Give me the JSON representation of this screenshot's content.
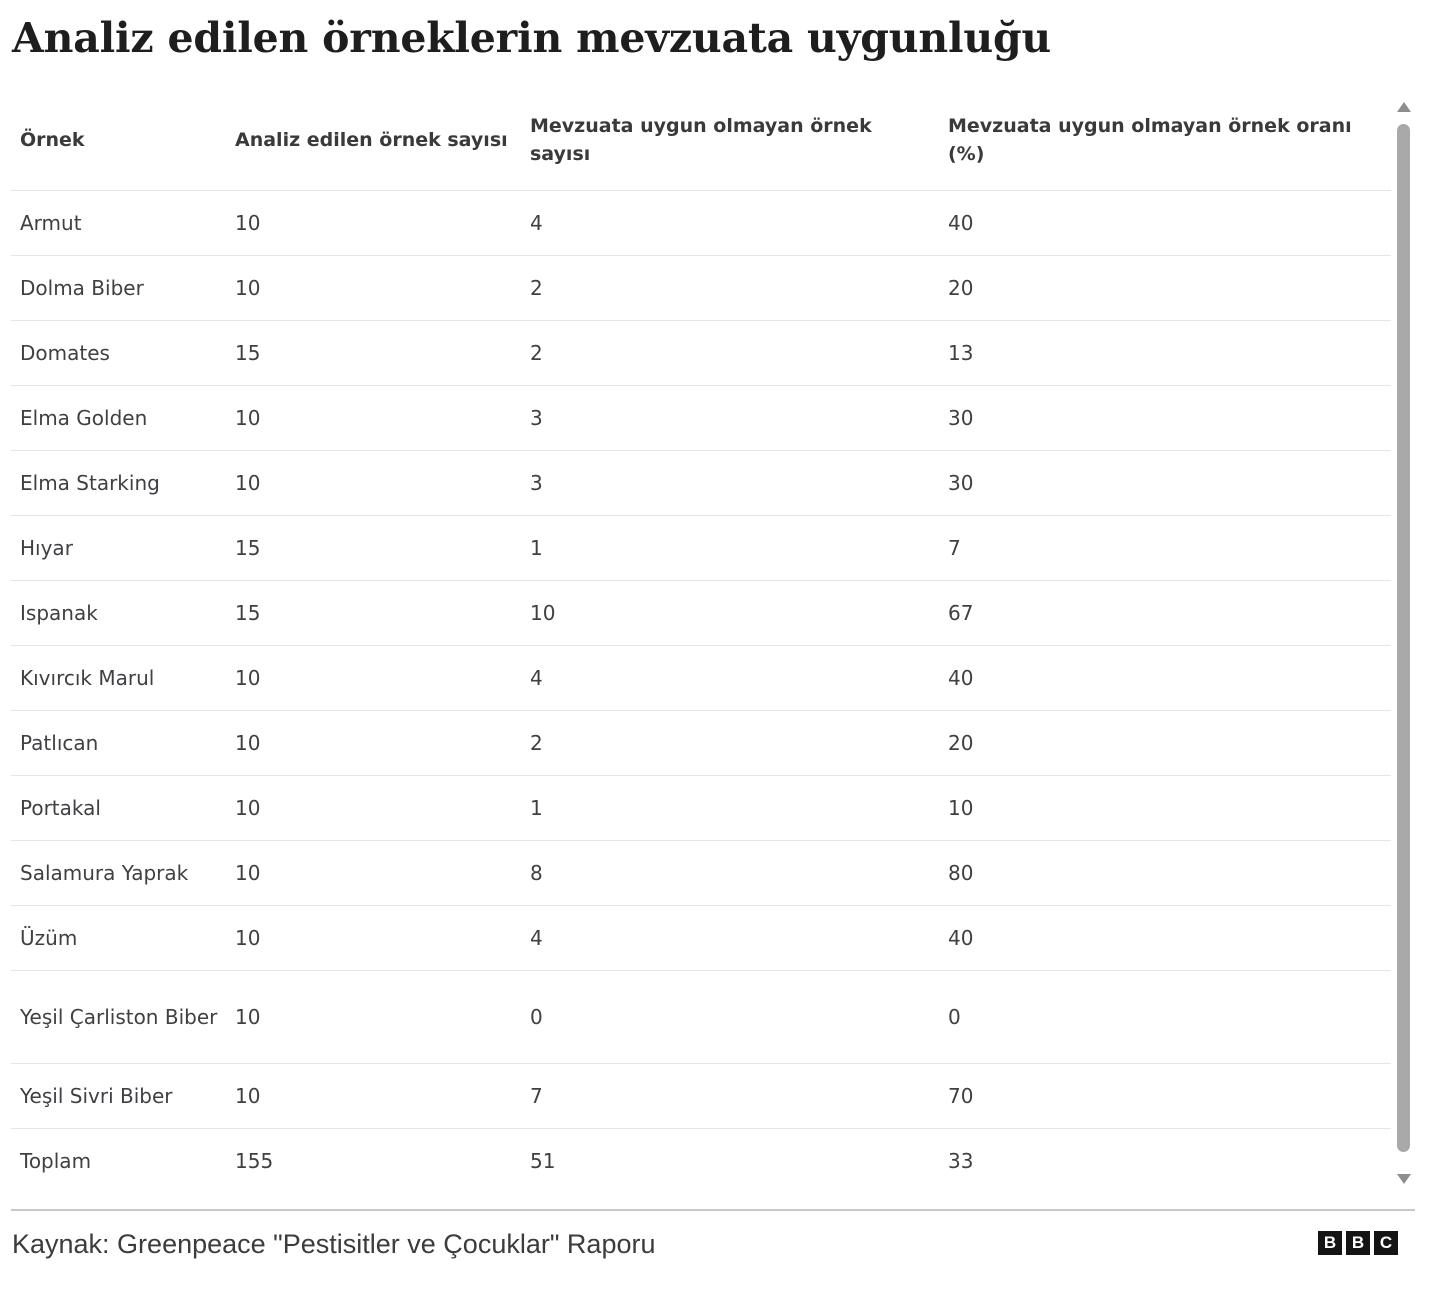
{
  "title": "Analiz edilen örneklerin mevzuata uygunluğu",
  "table": {
    "headers": [
      "Örnek",
      "Analiz edilen örnek sayısı",
      "Mevzuata uygun olmayan örnek sayısı",
      "Mevzuata uygun olmayan örnek oranı (%)"
    ],
    "rows": [
      [
        "Armut",
        "10",
        "4",
        "40"
      ],
      [
        "Dolma Biber",
        "10",
        "2",
        "20"
      ],
      [
        "Domates",
        "15",
        "2",
        "13"
      ],
      [
        "Elma Golden",
        "10",
        "3",
        "30"
      ],
      [
        "Elma Starking",
        "10",
        "3",
        "30"
      ],
      [
        "Hıyar",
        "15",
        "1",
        "7"
      ],
      [
        "Ispanak",
        "15",
        "10",
        "67"
      ],
      [
        "Kıvırcık Marul",
        "10",
        "4",
        "40"
      ],
      [
        "Patlıcan",
        "10",
        "2",
        "20"
      ],
      [
        "Portakal",
        "10",
        "1",
        "10"
      ],
      [
        "Salamura Yaprak",
        "10",
        "8",
        "80"
      ],
      [
        "Üzüm",
        "10",
        "4",
        "40"
      ],
      [
        "Yeşil Çarliston Biber",
        "10",
        "0",
        "0"
      ],
      [
        "Yeşil Sivri Biber",
        "10",
        "7",
        "70"
      ],
      [
        "Toplam",
        "155",
        "51",
        "33"
      ]
    ]
  },
  "footer": {
    "source": "Kaynak: Greenpeace \"Pestisitler ve Çocuklar\" Raporu",
    "logo_letters": [
      "B",
      "B",
      "C"
    ]
  }
}
